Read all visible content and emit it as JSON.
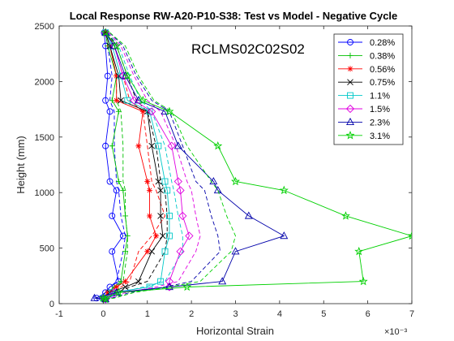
{
  "chart_data": {
    "type": "line",
    "title": "Local Response RW-A20-P10-S38: Test vs Model - Negative Cycle",
    "xlabel": "Horizontal Strain",
    "ylabel": "Height (mm)",
    "x_exponent_label": "×10⁻³",
    "xlim": [
      -1,
      7
    ],
    "ylim": [
      0,
      2500
    ],
    "xticks": [
      -1,
      0,
      1,
      2,
      3,
      4,
      5,
      6,
      7
    ],
    "yticks": [
      0,
      500,
      1000,
      1500,
      2000,
      2500
    ],
    "grid": false,
    "legend_position": "top-right",
    "annotation": "RCLMS02C02S02",
    "heights": [
      2440,
      2320,
      2050,
      1830,
      1730,
      1420,
      1100,
      1020,
      790,
      610,
      470,
      200,
      150,
      100,
      50,
      40
    ],
    "series": [
      {
        "name": "0.28%",
        "color": "#0000ff",
        "marker": "circle",
        "test": [
          0.02,
          0.05,
          0.1,
          0.05,
          0.15,
          0.05,
          0.15,
          0.3,
          0.2,
          0.45,
          0.2,
          0.35,
          0.15,
          0.05,
          -0.15,
          0.05
        ],
        "model": [
          0.05,
          0.1,
          0.2,
          0.15,
          0.25,
          0.25,
          0.3,
          0.35,
          0.4,
          0.5,
          0.45,
          0.3,
          0.15,
          0.05,
          -0.05,
          0.05
        ]
      },
      {
        "name": "0.38%",
        "color": "#00c000",
        "marker": "plus",
        "test": [
          0.05,
          0.1,
          0.3,
          0.2,
          0.35,
          0.2,
          0.35,
          0.45,
          0.5,
          0.55,
          0.5,
          0.4,
          0.25,
          0.1,
          0.0,
          0.05
        ],
        "model": [
          0.05,
          0.15,
          0.3,
          0.3,
          0.4,
          0.45,
          0.45,
          0.5,
          0.5,
          0.55,
          0.55,
          0.45,
          0.3,
          0.15,
          0.05,
          0.05
        ]
      },
      {
        "name": "0.56%",
        "color": "#ff0000",
        "marker": "asterisk",
        "test": [
          0.05,
          0.15,
          0.3,
          0.3,
          0.9,
          0.8,
          1.0,
          1.05,
          1.05,
          1.2,
          1.0,
          0.5,
          0.3,
          0.1,
          0.0,
          0.05
        ],
        "model": [
          0.08,
          0.25,
          0.45,
          0.6,
          0.9,
          1.0,
          1.1,
          1.2,
          1.4,
          1.1,
          0.8,
          0.6,
          0.4,
          0.2,
          0.05,
          0.05
        ]
      },
      {
        "name": "0.75%",
        "color": "#000000",
        "marker": "cross",
        "test": [
          0.05,
          0.15,
          0.35,
          0.4,
          1.0,
          1.1,
          1.25,
          1.3,
          1.3,
          1.35,
          1.1,
          0.8,
          0.5,
          0.15,
          0.0,
          0.05
        ],
        "model": [
          0.1,
          0.3,
          0.55,
          0.75,
          1.0,
          1.2,
          1.3,
          1.4,
          1.45,
          1.45,
          1.4,
          1.0,
          0.6,
          0.3,
          0.1,
          0.05
        ]
      },
      {
        "name": "1.1%",
        "color": "#00c8c8",
        "marker": "square",
        "test": [
          0.05,
          0.2,
          0.4,
          0.55,
          1.05,
          1.25,
          1.4,
          1.45,
          1.5,
          1.5,
          1.4,
          1.3,
          1.05,
          0.2,
          0.0,
          0.05
        ],
        "model": [
          0.1,
          0.35,
          0.6,
          0.85,
          1.1,
          1.4,
          1.55,
          1.6,
          1.7,
          1.8,
          1.8,
          1.4,
          0.9,
          0.4,
          0.1,
          0.05
        ]
      },
      {
        "name": "1.5%",
        "color": "#e000e0",
        "marker": "diamond",
        "test": [
          0.05,
          0.25,
          0.45,
          0.7,
          1.1,
          1.55,
          1.7,
          1.75,
          1.8,
          1.95,
          1.75,
          1.5,
          1.5,
          0.25,
          0.0,
          0.05
        ],
        "model": [
          0.12,
          0.4,
          0.7,
          1.0,
          1.3,
          1.65,
          1.9,
          2.0,
          2.1,
          2.2,
          2.1,
          1.7,
          1.2,
          0.5,
          0.15,
          0.05
        ]
      },
      {
        "name": "2.3%",
        "color": "#0000aa",
        "marker": "triangle",
        "test": [
          0.05,
          0.25,
          0.5,
          0.8,
          1.4,
          1.7,
          2.5,
          2.6,
          3.3,
          4.1,
          3.0,
          2.7,
          1.5,
          0.3,
          -0.2,
          0.05
        ],
        "model": [
          0.15,
          0.45,
          0.75,
          1.1,
          1.5,
          1.8,
          2.1,
          2.3,
          2.45,
          2.6,
          2.65,
          2.0,
          1.4,
          0.6,
          0.2,
          0.05
        ]
      },
      {
        "name": "3.1%",
        "color": "#00d000",
        "marker": "star",
        "test": [
          0.05,
          0.3,
          0.55,
          0.9,
          1.5,
          2.6,
          3.0,
          4.1,
          5.5,
          7.0,
          5.8,
          5.9,
          1.9,
          0.35,
          0.0,
          0.05
        ],
        "model": [
          0.15,
          0.5,
          0.8,
          1.15,
          1.55,
          1.9,
          2.45,
          2.6,
          2.8,
          3.0,
          2.9,
          2.2,
          1.5,
          0.7,
          0.25,
          0.05
        ]
      }
    ]
  }
}
